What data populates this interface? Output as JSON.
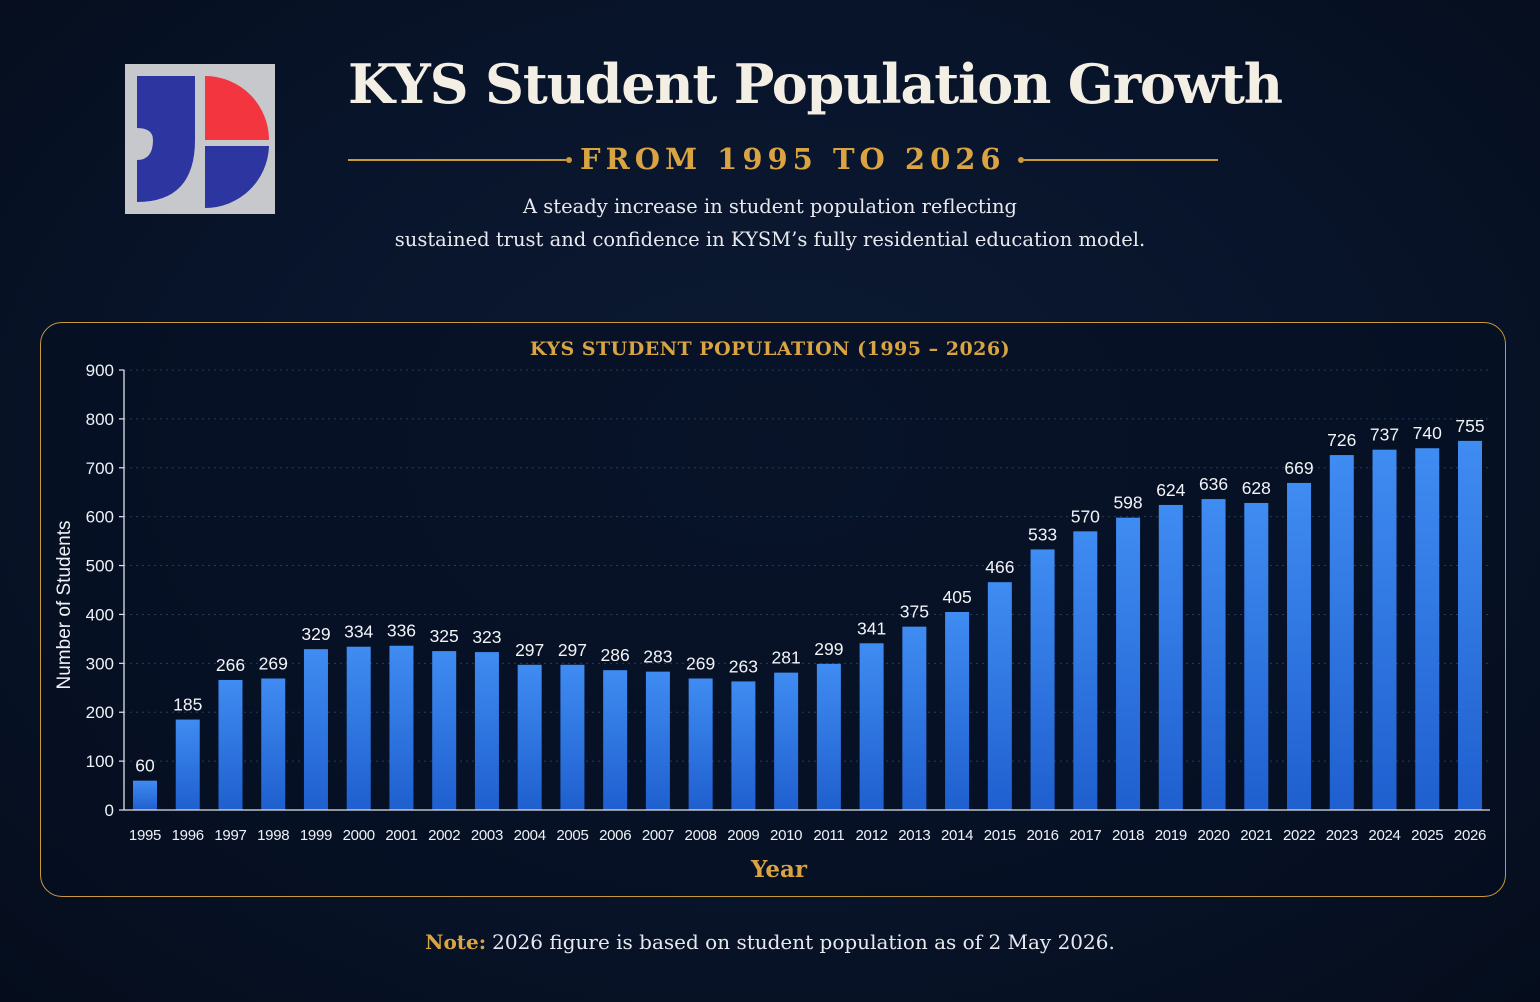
{
  "header": {
    "title": "KYS Student Population Growth",
    "subtitle": "FROM 1995 TO 2026",
    "description_line1": "A steady increase in student population reflecting",
    "description_line2": "sustained trust and confidence in KYSM’s fully residential education model."
  },
  "logo": {
    "icon": "kys-logo-icon",
    "colors": {
      "background": "#c6c8cc",
      "primary": "#2c35a0",
      "accent": "#f2353f"
    }
  },
  "colors": {
    "accent": "#d9a441",
    "bar": "#2f7ae8",
    "background": "#08142a"
  },
  "chart_data": {
    "type": "bar",
    "title": "KYS STUDENT POPULATION (1995 – 2026)",
    "xlabel": "Year",
    "ylabel": "Number of Students",
    "ylim": [
      0,
      900
    ],
    "yticks": [
      0,
      100,
      200,
      300,
      400,
      500,
      600,
      700,
      800,
      900
    ],
    "grid": true,
    "categories": [
      "1995",
      "1996",
      "1997",
      "1998",
      "1999",
      "2000",
      "2001",
      "2002",
      "2003",
      "2004",
      "2005",
      "2006",
      "2007",
      "2008",
      "2009",
      "2010",
      "2011",
      "2012",
      "2013",
      "2014",
      "2015",
      "2016",
      "2017",
      "2018",
      "2019",
      "2020",
      "2021",
      "2022",
      "2023",
      "2024",
      "2025",
      "2026"
    ],
    "values": [
      60,
      185,
      266,
      269,
      329,
      334,
      336,
      325,
      323,
      297,
      297,
      286,
      283,
      269,
      263,
      281,
      299,
      341,
      375,
      405,
      466,
      533,
      570,
      598,
      624,
      636,
      628,
      669,
      726,
      737,
      740,
      755
    ]
  },
  "note": {
    "label": "Note:",
    "text": "2026 figure is based on student population as of 2 May 2026."
  }
}
